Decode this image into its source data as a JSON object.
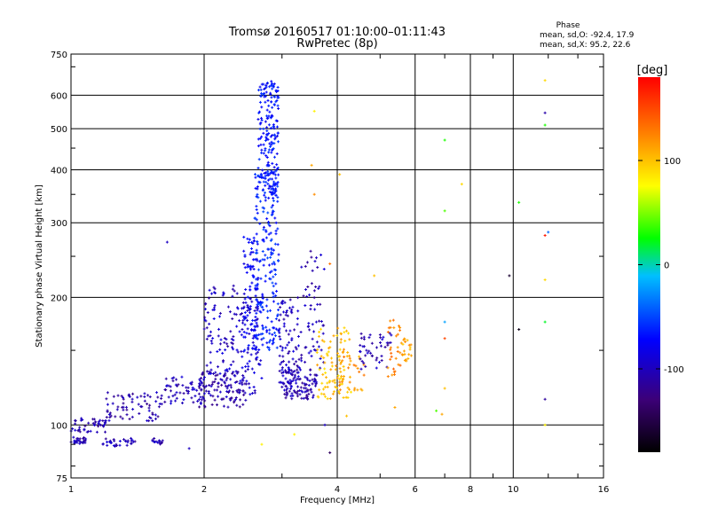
{
  "chart_data": {
    "type": "scatter",
    "title": "Tromsø 20160517 01:10:00–01:11:43",
    "subtitle": "RwPretec (8p)",
    "xlabel": "Frequency [MHz]",
    "ylabel": "Stationary phase Virtual Height [km]",
    "x_scale": "log",
    "y_scale": "log",
    "xlim": [
      1,
      16
    ],
    "ylim": [
      75,
      750
    ],
    "x_ticks": [
      1,
      2,
      4,
      6,
      8,
      10,
      16
    ],
    "x_tick_labels": [
      "1",
      "2",
      "4",
      "6",
      "8",
      "10",
      "16"
    ],
    "y_ticks": [
      75,
      100,
      200,
      300,
      400,
      500,
      600,
      750
    ],
    "y_tick_labels": [
      "75",
      "100",
      "200",
      "300",
      "400",
      "500",
      "600",
      "750"
    ],
    "grid": true,
    "stats": {
      "header": "Phase",
      "line_o": "mean, sd,O: -92.4, 17.9",
      "line_x": "mean, sd,X:  95.2, 22.6"
    },
    "colorbar": {
      "label": "[deg]",
      "range": [
        -180,
        180
      ],
      "tick_values": [
        100,
        0,
        -100
      ],
      "tick_labels": [
        "100",
        "0",
        "-100"
      ],
      "colors": [
        "#000000",
        "#3c0078",
        "#0000ff",
        "#00bfff",
        "#00ff00",
        "#ffff00",
        "#ff8000",
        "#ff0000"
      ]
    },
    "clusters": [
      {
        "f": [
          1.0,
          1.08
        ],
        "h": [
          90,
          94
        ],
        "phase": -105,
        "n": 28
      },
      {
        "f": [
          1.18,
          1.42
        ],
        "h": [
          89,
          93
        ],
        "phase": -105,
        "n": 30
      },
      {
        "f": [
          1.5,
          1.62
        ],
        "h": [
          90,
          93
        ],
        "phase": -105,
        "n": 14
      },
      {
        "f": [
          1.0,
          1.2
        ],
        "h": [
          96,
          104
        ],
        "phase": -108,
        "n": 45
      },
      {
        "f": [
          1.2,
          1.6
        ],
        "h": [
          102,
          120
        ],
        "phase": -108,
        "n": 70
      },
      {
        "f": [
          1.6,
          2.0
        ],
        "h": [
          112,
          130
        ],
        "phase": -105,
        "n": 60
      },
      {
        "f": [
          1.95,
          2.5
        ],
        "h": [
          110,
          135
        ],
        "phase": -108,
        "n": 110
      },
      {
        "f": [
          2.0,
          2.4
        ],
        "h": [
          130,
          215
        ],
        "phase": -100,
        "n": 90
      },
      {
        "f": [
          2.4,
          2.7
        ],
        "h": [
          118,
          200
        ],
        "phase": -95,
        "n": 80
      },
      {
        "f": [
          2.45,
          2.65
        ],
        "h": [
          150,
          280
        ],
        "phase": -80,
        "n": 90
      },
      {
        "f": [
          2.6,
          2.95
        ],
        "h": [
          150,
          400
        ],
        "phase": -65,
        "n": 220
      },
      {
        "f": [
          2.65,
          2.95
        ],
        "h": [
          350,
          650
        ],
        "phase": -70,
        "n": 180
      },
      {
        "f": [
          2.95,
          3.3
        ],
        "h": [
          115,
          200
        ],
        "phase": -102,
        "n": 100
      },
      {
        "f": [
          3.0,
          3.6
        ],
        "h": [
          115,
          135
        ],
        "phase": -108,
        "n": 90
      },
      {
        "f": [
          3.3,
          3.75
        ],
        "h": [
          135,
          260
        ],
        "phase": -105,
        "n": 60
      },
      {
        "f": [
          3.6,
          4.3
        ],
        "h": [
          115,
          170
        ],
        "phase": 100,
        "n": 90
      },
      {
        "f": [
          3.9,
          4.6
        ],
        "h": [
          120,
          155
        ],
        "phase": 115,
        "n": 35
      },
      {
        "f": [
          4.5,
          5.3
        ],
        "h": [
          135,
          165
        ],
        "phase": -105,
        "n": 45
      },
      {
        "f": [
          5.2,
          5.6
        ],
        "h": [
          130,
          180
        ],
        "phase": 125,
        "n": 30
      },
      {
        "f": [
          5.6,
          5.9
        ],
        "h": [
          140,
          160
        ],
        "phase": 110,
        "n": 20
      }
    ],
    "points": [
      {
        "f": 1.65,
        "h": 270,
        "phase": -100
      },
      {
        "f": 3.55,
        "h": 550,
        "phase": 80
      },
      {
        "f": 3.5,
        "h": 410,
        "phase": 110
      },
      {
        "f": 3.55,
        "h": 350,
        "phase": 120
      },
      {
        "f": 4.05,
        "h": 390,
        "phase": 100
      },
      {
        "f": 3.85,
        "h": 240,
        "phase": 130
      },
      {
        "f": 7.0,
        "h": 470,
        "phase": 30
      },
      {
        "f": 7.0,
        "h": 320,
        "phase": 40
      },
      {
        "f": 7.65,
        "h": 370,
        "phase": 90
      },
      {
        "f": 7.0,
        "h": 175,
        "phase": -20
      },
      {
        "f": 7.0,
        "h": 160,
        "phase": 150
      },
      {
        "f": 7.0,
        "h": 122,
        "phase": 100
      },
      {
        "f": 6.7,
        "h": 108,
        "phase": 40
      },
      {
        "f": 6.9,
        "h": 106,
        "phase": 110
      },
      {
        "f": 9.8,
        "h": 225,
        "phase": -160
      },
      {
        "f": 10.3,
        "h": 335,
        "phase": 30
      },
      {
        "f": 10.3,
        "h": 168,
        "phase": -170
      },
      {
        "f": 11.8,
        "h": 650,
        "phase": 90
      },
      {
        "f": 11.8,
        "h": 545,
        "phase": -110
      },
      {
        "f": 11.8,
        "h": 510,
        "phase": 30
      },
      {
        "f": 11.8,
        "h": 280,
        "phase": 170
      },
      {
        "f": 12.0,
        "h": 285,
        "phase": -40
      },
      {
        "f": 11.8,
        "h": 220,
        "phase": 90
      },
      {
        "f": 11.8,
        "h": 175,
        "phase": 20
      },
      {
        "f": 11.8,
        "h": 115,
        "phase": -115
      },
      {
        "f": 11.8,
        "h": 100,
        "phase": 80
      },
      {
        "f": 2.7,
        "h": 90,
        "phase": 80
      },
      {
        "f": 3.2,
        "h": 95,
        "phase": 80
      },
      {
        "f": 1.85,
        "h": 88,
        "phase": -100
      },
      {
        "f": 3.85,
        "h": 86,
        "phase": -140
      },
      {
        "f": 3.75,
        "h": 100,
        "phase": -100
      },
      {
        "f": 4.2,
        "h": 105,
        "phase": 100
      },
      {
        "f": 4.85,
        "h": 225,
        "phase": 100
      },
      {
        "f": 5.4,
        "h": 110,
        "phase": 110
      }
    ]
  }
}
